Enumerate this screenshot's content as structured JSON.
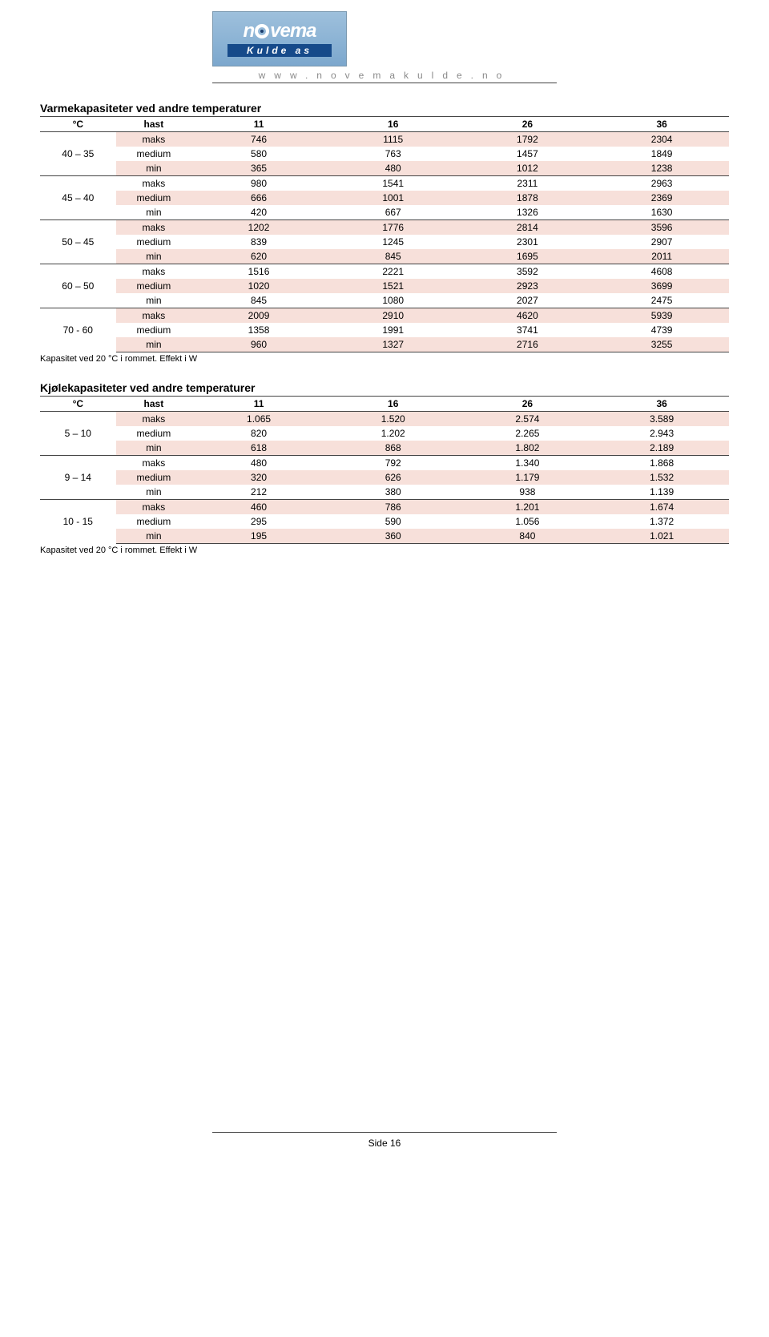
{
  "header": {
    "logo_top": "novema",
    "logo_bottom": "Kulde as",
    "url": "www.novemakulde.no"
  },
  "heatTable": {
    "title": "Varmekapasiteter ved andre temperaturer",
    "columns": [
      "°C",
      "hast",
      "11",
      "16",
      "26",
      "36"
    ],
    "note": "Kapasitet ved 20 °C i rommet. Effekt i W",
    "groups": [
      {
        "label": "40 – 35",
        "rows": [
          {
            "hast": "maks",
            "v": [
              "746",
              "1115",
              "1792",
              "2304"
            ]
          },
          {
            "hast": "medium",
            "v": [
              "580",
              "763",
              "1457",
              "1849"
            ]
          },
          {
            "hast": "min",
            "v": [
              "365",
              "480",
              "1012",
              "1238"
            ]
          }
        ]
      },
      {
        "label": "45 – 40",
        "rows": [
          {
            "hast": "maks",
            "v": [
              "980",
              "1541",
              "2311",
              "2963"
            ]
          },
          {
            "hast": "medium",
            "v": [
              "666",
              "1001",
              "1878",
              "2369"
            ]
          },
          {
            "hast": "min",
            "v": [
              "420",
              "667",
              "1326",
              "1630"
            ]
          }
        ]
      },
      {
        "label": "50 – 45",
        "rows": [
          {
            "hast": "maks",
            "v": [
              "1202",
              "1776",
              "2814",
              "3596"
            ]
          },
          {
            "hast": "medium",
            "v": [
              "839",
              "1245",
              "2301",
              "2907"
            ]
          },
          {
            "hast": "min",
            "v": [
              "620",
              "845",
              "1695",
              "2011"
            ]
          }
        ]
      },
      {
        "label": "60 – 50",
        "rows": [
          {
            "hast": "maks",
            "v": [
              "1516",
              "2221",
              "3592",
              "4608"
            ]
          },
          {
            "hast": "medium",
            "v": [
              "1020",
              "1521",
              "2923",
              "3699"
            ]
          },
          {
            "hast": "min",
            "v": [
              "845",
              "1080",
              "2027",
              "2475"
            ]
          }
        ]
      },
      {
        "label": "70 - 60",
        "rows": [
          {
            "hast": "maks",
            "v": [
              "2009",
              "2910",
              "4620",
              "5939"
            ]
          },
          {
            "hast": "medium",
            "v": [
              "1358",
              "1991",
              "3741",
              "4739"
            ]
          },
          {
            "hast": "min",
            "v": [
              "960",
              "1327",
              "2716",
              "3255"
            ]
          }
        ]
      }
    ]
  },
  "coolTable": {
    "title": "Kjølekapasiteter ved andre temperaturer",
    "columns": [
      "°C",
      "hast",
      "11",
      "16",
      "26",
      "36"
    ],
    "note": "Kapasitet ved 20 °C i rommet. Effekt i W",
    "groups": [
      {
        "label": "5 – 10",
        "rows": [
          {
            "hast": "maks",
            "v": [
              "1.065",
              "1.520",
              "2.574",
              "3.589"
            ]
          },
          {
            "hast": "medium",
            "v": [
              "820",
              "1.202",
              "2.265",
              "2.943"
            ]
          },
          {
            "hast": "min",
            "v": [
              "618",
              "868",
              "1.802",
              "2.189"
            ]
          }
        ]
      },
      {
        "label": "9 – 14",
        "rows": [
          {
            "hast": "maks",
            "v": [
              "480",
              "792",
              "1.340",
              "1.868"
            ]
          },
          {
            "hast": "medium",
            "v": [
              "320",
              "626",
              "1.179",
              "1.532"
            ]
          },
          {
            "hast": "min",
            "v": [
              "212",
              "380",
              "938",
              "1.139"
            ]
          }
        ]
      },
      {
        "label": "10 - 15",
        "rows": [
          {
            "hast": "maks",
            "v": [
              "460",
              "786",
              "1.201",
              "1.674"
            ]
          },
          {
            "hast": "medium",
            "v": [
              "295",
              "590",
              "1.056",
              "1.372"
            ]
          },
          {
            "hast": "min",
            "v": [
              "195",
              "360",
              "840",
              "1.021"
            ]
          }
        ]
      }
    ]
  },
  "footer": {
    "page": "Side 16"
  },
  "style": {
    "row_shade_pink": "#f7e0da",
    "row_shade_white": "#ffffff",
    "border_color": "#444444",
    "text_color": "#000000",
    "url_color": "#8a8a8a",
    "logo_bg_top": "#9ec0dc",
    "logo_bg_bottom": "#7ca7cd",
    "logo_bottom_bg": "#164a8a"
  }
}
